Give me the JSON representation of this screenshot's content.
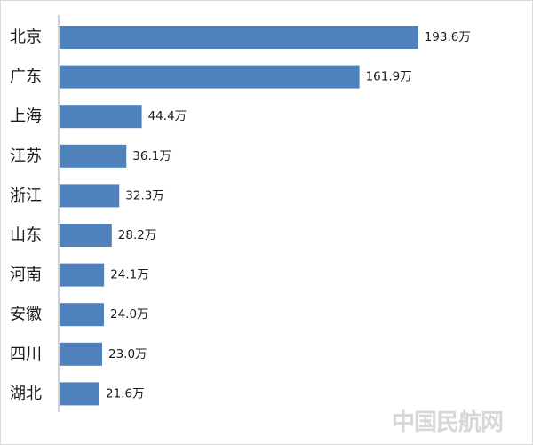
{
  "chart_data": {
    "type": "bar",
    "orientation": "horizontal",
    "categories": [
      "北京",
      "广东",
      "上海",
      "江苏",
      "浙江",
      "山东",
      "河南",
      "安徽",
      "四川",
      "湖北"
    ],
    "values": [
      193.6,
      161.9,
      44.4,
      36.1,
      32.3,
      28.2,
      24.1,
      24.0,
      23.0,
      21.6
    ],
    "value_labels": [
      "193.6万",
      "161.9万",
      "44.4万",
      "36.1万",
      "32.3万",
      "28.2万",
      "24.1万",
      "24.0万",
      "23.0万",
      "21.6万"
    ],
    "title": "",
    "xlabel": "",
    "ylabel": "",
    "xlim": [
      0,
      200
    ],
    "grid": false,
    "legend": "none",
    "bar_color": "#4f81bd"
  },
  "watermark": "中国民航网"
}
